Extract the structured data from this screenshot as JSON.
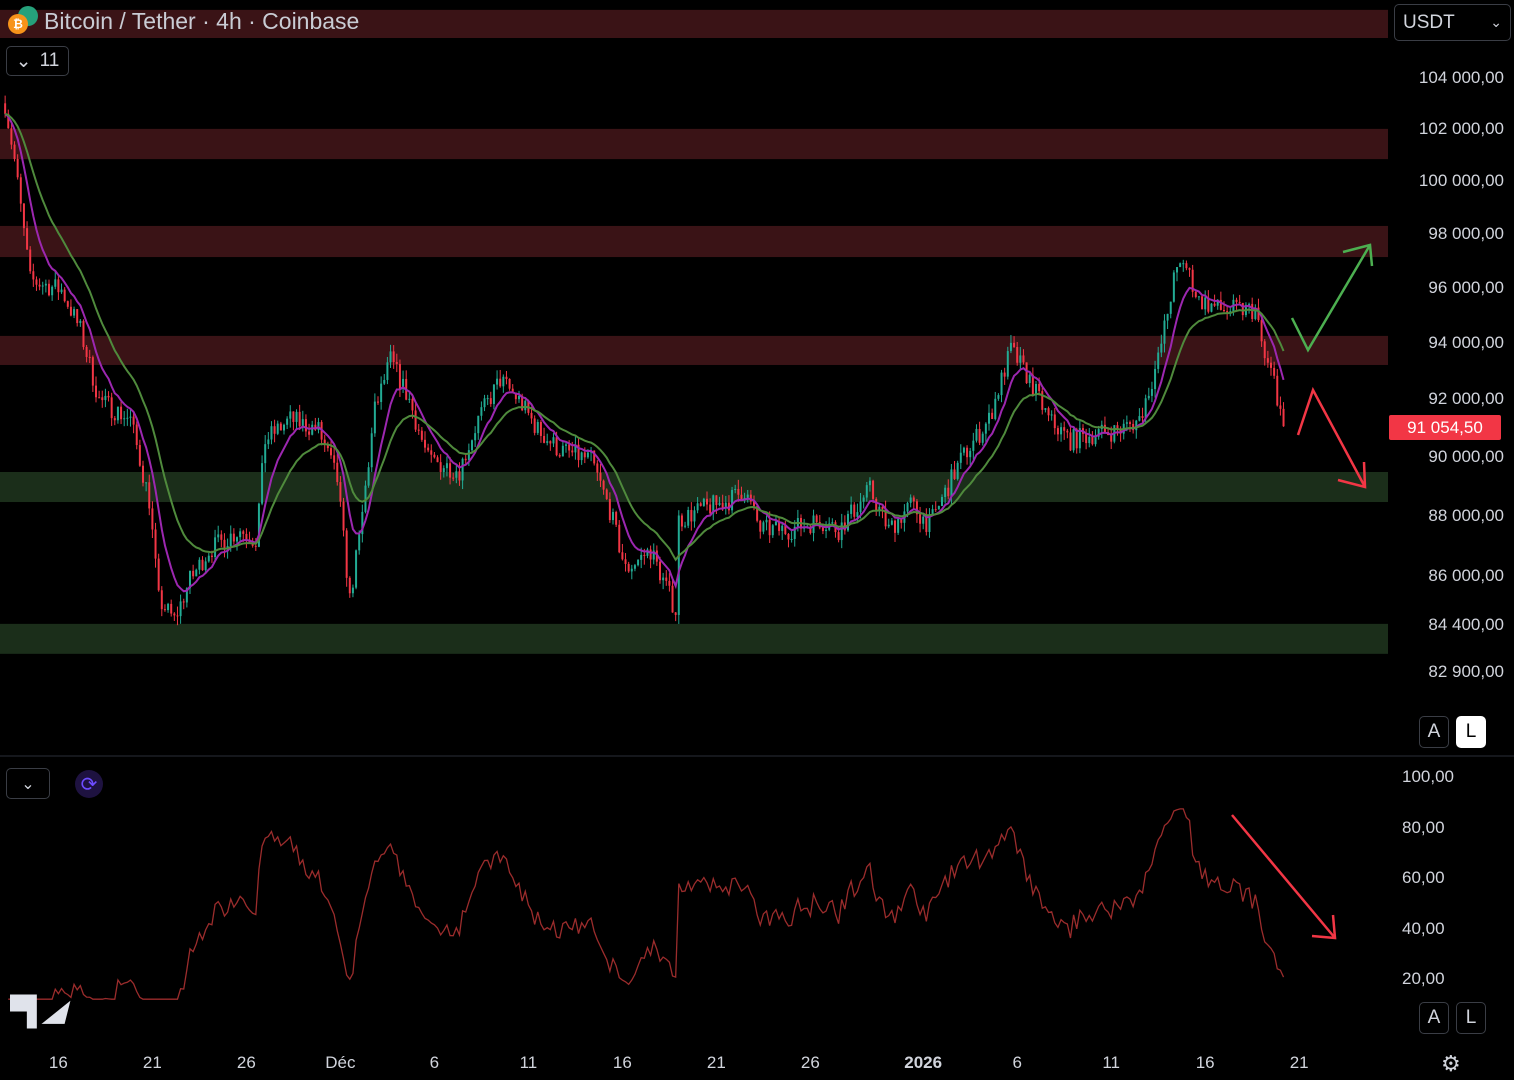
{
  "header": {
    "title": "Bitcoin / Tether · 4h · Coinbase",
    "indicators_count": "11",
    "currency": "USDT"
  },
  "colors": {
    "up": "#22ab94",
    "down": "#f23645",
    "ema_fast": "#9c27b0",
    "ema_slow": "#4f8a3c",
    "rsi": "#9b2c2c",
    "resistance_zone": "#3a1316",
    "support_zone": "#1b2e1a",
    "price_tag": "#f23645"
  },
  "icons": {
    "indicator_toggle": "chevron-down-icon",
    "sync": "sync-icon",
    "settings": "gear-icon",
    "logo": "tradingview-logo"
  },
  "price_scale": {
    "auto_label": "A",
    "log_label": "L"
  },
  "rsi_scale": {
    "auto_label": "A",
    "log_label": "L"
  },
  "logo_text": "TV",
  "chart_data": {
    "type": "candlestick",
    "interval": "4h",
    "y_scale": "log",
    "ylim": [
      81500,
      107500
    ],
    "current_price": 91054.5,
    "current_price_label": "91 054,50",
    "price_ticks": [
      {
        "value": 104000,
        "label": "104 000,00"
      },
      {
        "value": 102000,
        "label": "102 000,00"
      },
      {
        "value": 100000,
        "label": "100 000,00"
      },
      {
        "value": 98000,
        "label": "98 000,00"
      },
      {
        "value": 96000,
        "label": "96 000,00"
      },
      {
        "value": 94000,
        "label": "94 000,00"
      },
      {
        "value": 92000,
        "label": "92 000,00"
      },
      {
        "value": 90000,
        "label": "90 000,00"
      },
      {
        "value": 88000,
        "label": "88 000,00"
      },
      {
        "value": 86000,
        "label": "86 000,00"
      },
      {
        "value": 84400,
        "label": "84 400,00"
      },
      {
        "value": 82900,
        "label": "82 900,00"
      }
    ],
    "time_ticks": [
      {
        "date": "2025-11-16",
        "label": "16"
      },
      {
        "date": "2025-11-21",
        "label": "21"
      },
      {
        "date": "2025-11-26",
        "label": "26"
      },
      {
        "date": "2025-12-01",
        "label": "Déc"
      },
      {
        "date": "2025-12-06",
        "label": "6"
      },
      {
        "date": "2025-12-11",
        "label": "11"
      },
      {
        "date": "2025-12-16",
        "label": "16"
      },
      {
        "date": "2025-12-21",
        "label": "21"
      },
      {
        "date": "2025-12-26",
        "label": "26"
      },
      {
        "date": "2026-01-01",
        "label": "2026",
        "bold": true
      },
      {
        "date": "2026-01-06",
        "label": "6"
      },
      {
        "date": "2026-01-11",
        "label": "11"
      },
      {
        "date": "2026-01-16",
        "label": "16"
      },
      {
        "date": "2026-01-21",
        "label": "21"
      }
    ],
    "zones": [
      {
        "kind": "resistance",
        "from": 105600,
        "to": 106740
      },
      {
        "kind": "resistance",
        "from": 100830,
        "to": 102000
      },
      {
        "kind": "resistance",
        "from": 97130,
        "to": 98290
      },
      {
        "kind": "resistance",
        "from": 93210,
        "to": 94250
      },
      {
        "kind": "support",
        "from": 88460,
        "to": 89480
      },
      {
        "kind": "support",
        "from": 83480,
        "to": 84440
      }
    ],
    "close_path": [
      [
        "2025-11-13 04:00",
        103000
      ],
      [
        "2025-11-13 16:00",
        100800
      ],
      [
        "2025-11-14 12:00",
        96280
      ],
      [
        "2025-11-16 04:00",
        95920
      ],
      [
        "2025-11-17 04:00",
        94460
      ],
      [
        "2025-11-18 04:00",
        91970
      ],
      [
        "2025-11-19 20:00",
        91290
      ],
      [
        "2025-11-20 20:00",
        88520
      ],
      [
        "2025-11-21 08:00",
        85220
      ],
      [
        "2025-11-22 04:00",
        84560
      ],
      [
        "2025-11-23 00:00",
        85860
      ],
      [
        "2025-11-24 00:00",
        86850
      ],
      [
        "2025-11-25 16:00",
        87530
      ],
      [
        "2025-11-26 12:00",
        87190
      ],
      [
        "2025-11-27 00:00",
        90570
      ],
      [
        "2025-11-28 08:00",
        91290
      ],
      [
        "2025-11-29 20:00",
        90930
      ],
      [
        "2025-11-30 20:00",
        89210
      ],
      [
        "2025-12-01 12:00",
        85220
      ],
      [
        "2025-12-02 00:00",
        87190
      ],
      [
        "2025-12-02 20:00",
        91620
      ],
      [
        "2025-12-03 16:00",
        93390
      ],
      [
        "2025-12-04 16:00",
        91970
      ],
      [
        "2025-12-05 16:00",
        89890
      ],
      [
        "2025-12-07 08:00",
        89540
      ],
      [
        "2025-12-08 08:00",
        91290
      ],
      [
        "2025-12-09 12:00",
        92680
      ],
      [
        "2025-12-10 12:00",
        91970
      ],
      [
        "2025-12-11 12:00",
        90930
      ],
      [
        "2025-12-12 16:00",
        90230
      ],
      [
        "2025-12-14 08:00",
        89890
      ],
      [
        "2025-12-15 08:00",
        88190
      ],
      [
        "2025-12-16 04:00",
        86200
      ],
      [
        "2025-12-17 12:00",
        86850
      ],
      [
        "2025-12-18 20:00",
        84880
      ],
      [
        "2025-12-19 00:00",
        87860
      ],
      [
        "2025-12-20 04:00",
        88190
      ],
      [
        "2025-12-21 16:00",
        88520
      ],
      [
        "2025-12-22 12:00",
        88870
      ],
      [
        "2025-12-23 08:00",
        87530
      ],
      [
        "2025-12-24 20:00",
        87530
      ],
      [
        "2025-12-26 12:00",
        87860
      ],
      [
        "2025-12-27 12:00",
        87530
      ],
      [
        "2025-12-29 04:00",
        88870
      ],
      [
        "2025-12-30 04:00",
        87530
      ],
      [
        "2025-12-31 08:00",
        88360
      ],
      [
        "2026-01-01 08:00",
        87690
      ],
      [
        "2026-01-03 00:00",
        89890
      ],
      [
        "2026-01-04 12:00",
        91290
      ],
      [
        "2026-01-05 16:00",
        93750
      ],
      [
        "2026-01-06 16:00",
        92680
      ],
      [
        "2026-01-07 16:00",
        91290
      ],
      [
        "2026-01-08 20:00",
        90570
      ],
      [
        "2026-01-09 20:00",
        90750
      ],
      [
        "2026-01-11 12:00",
        90930
      ],
      [
        "2026-01-12 12:00",
        91290
      ],
      [
        "2026-01-13 12:00",
        93390
      ],
      [
        "2026-01-14 08:00",
        96280
      ],
      [
        "2026-01-14 20:00",
        97020
      ],
      [
        "2026-01-15 16:00",
        95550
      ],
      [
        "2026-01-16 20:00",
        95190
      ],
      [
        "2026-01-18 16:00",
        95190
      ],
      [
        "2026-01-19 04:00",
        93390
      ],
      [
        "2026-01-19 16:00",
        92680
      ],
      [
        "2026-01-20 04:00",
        91054.5
      ]
    ],
    "rsi": {
      "ylim": [
        10,
        105
      ],
      "ticks": [
        {
          "value": 100,
          "label": "100,00"
        },
        {
          "value": 80,
          "label": "80,00"
        },
        {
          "value": 60,
          "label": "60,00"
        },
        {
          "value": 40,
          "label": "40,00"
        },
        {
          "value": 20,
          "label": "20,00"
        }
      ]
    }
  }
}
